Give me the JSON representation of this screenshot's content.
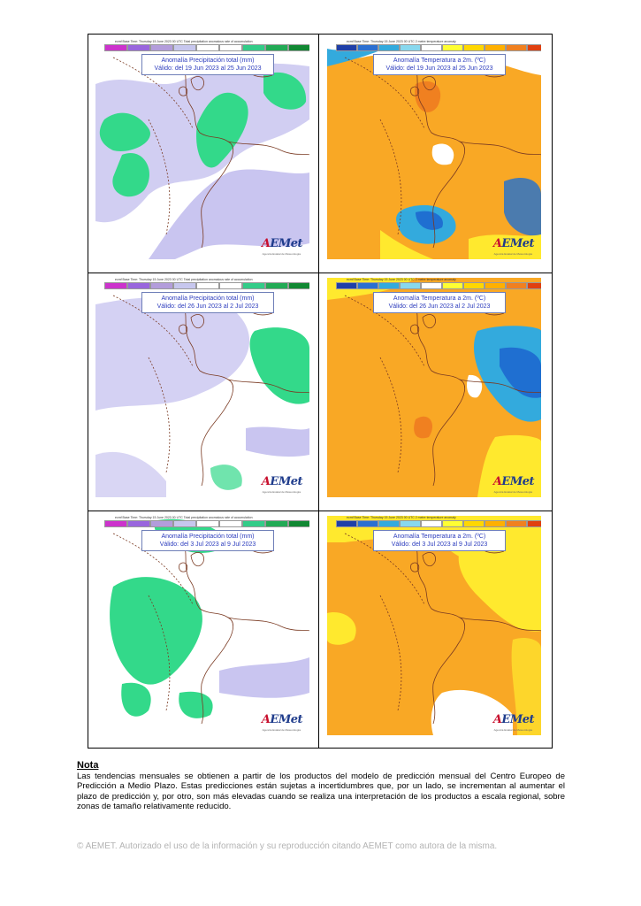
{
  "panels": [
    {
      "run_line": "ecmf Base Time: Thursday 15 June 2023 00 UTC Total precipitation anomalous rate of accumulation",
      "title": "Anomalía Precipitación total (mm)",
      "valid": "Válido: del 19 Jun 2023 al 25 Jun 2023",
      "logo": "AEMet",
      "logo_sub": "Agencia Estatal de Meteorología",
      "kind": "precip"
    },
    {
      "run_line": "ecmf Base Time: Thursday 15 June 2023 00 UTC 2 metre temperature anomaly",
      "title": "Anomalía Temperatura a 2m. (ºC)",
      "valid": "Válido: del 19 Jun 2023 al 25 Jun 2023",
      "logo": "AEMet",
      "logo_sub": "Agencia Estatal de Meteorología",
      "kind": "temp"
    },
    {
      "run_line": "ecmf Base Time: Thursday 15 June 2023 00 UTC Total precipitation anomalous rate of accumulation",
      "title": "Anomalía Precipitación total (mm)",
      "valid": "Válido: del 26 Jun 2023 al 2 Jul 2023",
      "logo": "AEMet",
      "logo_sub": "Agencia Estatal de Meteorología",
      "kind": "precip"
    },
    {
      "run_line": "ecmf Base Time: Thursday 15 June 2023 00 UTC 2 metre temperature anomaly",
      "title": "Anomalía Temperatura a 2m. (ºC)",
      "valid": "Válido: del 26 Jun 2023 al 2 Jul 2023",
      "logo": "AEMet",
      "logo_sub": "Agencia Estatal de Meteorología",
      "kind": "temp"
    },
    {
      "run_line": "ecmf Base Time: Thursday 15 June 2023 00 UTC Total precipitation anomalous rate of accumulation",
      "title": "Anomalía Precipitación total (mm)",
      "valid": "Válido: del 3 Jul 2023 al 9 Jul 2023",
      "logo": "AEMet",
      "logo_sub": "Agencia Estatal de Meteorología",
      "kind": "precip"
    },
    {
      "run_line": "ecmf Base Time: Thursday 15 June 2023 00 UTC 2 metre temperature anomaly",
      "title": "Anomalía Temperatura a 2m. (ºC)",
      "valid": "Válido: del 3 Jul 2023 al 9 Jul 2023",
      "logo": "AEMet",
      "logo_sub": "Agencia Estatal de Meteorología",
      "kind": "temp"
    }
  ],
  "colors": {
    "precip_scale": [
      "#cc33cc",
      "#9966dd",
      "#b39ddb",
      "#c7c7ee",
      "#ffffff",
      "#ffffff",
      "#33cc88",
      "#22aa55",
      "#118833"
    ],
    "temp_scale": [
      "#1f3fa8",
      "#2b6fd1",
      "#33aadd",
      "#88d8ee",
      "#ffffff",
      "#ffff33",
      "#ffd700",
      "#ffb000",
      "#f08020",
      "#e04010"
    ],
    "precip_wet": "#33d98a",
    "precip_dry": "#c9c5f0",
    "temp_warm": "#f9a825",
    "temp_warmer": "#f08020",
    "temp_mild": "#ffe92e",
    "temp_cool": "#33aadd",
    "temp_cold": "#1f6fd1",
    "coast": "#7a3a22"
  },
  "note": {
    "title": "Nota",
    "body": "Las tendencias mensuales se obtienen a partir de los productos del modelo de predicción mensual del Centro Europeo de Predicción a Medio Plazo. Estas predicciones están sujetas a incertidumbres que, por un lado, se incrementan al aumentar el plazo de predicción y, por otro, son más elevadas cuando se realiza una interpretación de los productos a escala regional, sobre zonas de tamaño relativamente reducido."
  },
  "footer": "© AEMET. Autorizado el uso de la información y su reproducción citando AEMET como autora de la misma."
}
